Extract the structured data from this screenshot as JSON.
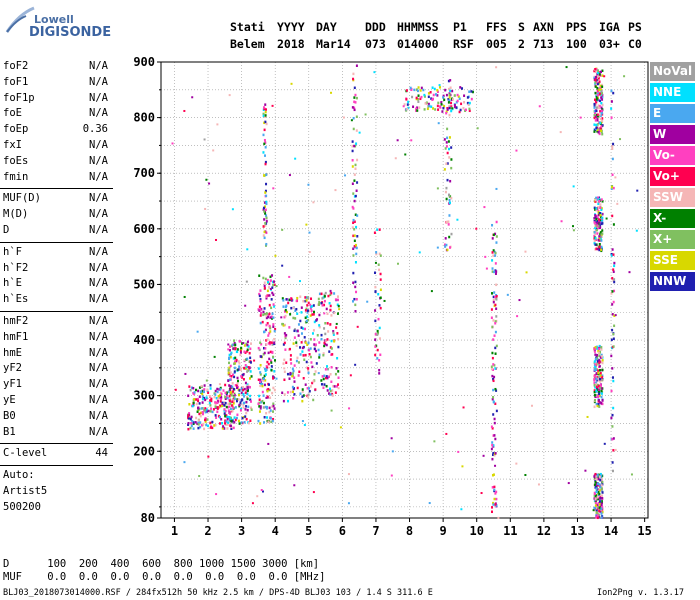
{
  "logo": {
    "brand_top": "Lowell",
    "brand_bottom": "DIGISONDE"
  },
  "header": {
    "labels": [
      "Stati",
      "YYYY",
      "DAY",
      "DDD",
      "HHMMSS",
      "P1",
      "FFS",
      "S",
      "AXN",
      "PPS",
      "IGA",
      "PS"
    ],
    "values": [
      "Belem",
      "2018",
      "Mar14",
      "073",
      "014000",
      "RSF",
      "005",
      "2",
      "713",
      "100",
      "03+",
      "C0"
    ]
  },
  "params": {
    "group1": [
      {
        "name": "foF2",
        "value": "N/A"
      },
      {
        "name": "foF1",
        "value": "N/A"
      },
      {
        "name": "foF1p",
        "value": "N/A"
      },
      {
        "name": "foE",
        "value": "N/A"
      },
      {
        "name": "foEp",
        "value": "0.36"
      },
      {
        "name": "fxI",
        "value": "N/A"
      },
      {
        "name": "foEs",
        "value": "N/A"
      },
      {
        "name": "fmin",
        "value": "N/A"
      }
    ],
    "group2": [
      {
        "name": "MUF(D)",
        "value": "N/A"
      },
      {
        "name": "M(D)",
        "value": "N/A"
      },
      {
        "name": "D",
        "value": "N/A"
      }
    ],
    "group3": [
      {
        "name": "h`F",
        "value": "N/A"
      },
      {
        "name": "h`F2",
        "value": "N/A"
      },
      {
        "name": "h`E",
        "value": "N/A"
      },
      {
        "name": "h`Es",
        "value": "N/A"
      }
    ],
    "group4": [
      {
        "name": "hmF2",
        "value": "N/A"
      },
      {
        "name": "hmF1",
        "value": "N/A"
      },
      {
        "name": "hmE",
        "value": "N/A"
      },
      {
        "name": "yF2",
        "value": "N/A"
      },
      {
        "name": "yF1",
        "value": "N/A"
      },
      {
        "name": "yE",
        "value": "N/A"
      },
      {
        "name": "B0",
        "value": "N/A"
      },
      {
        "name": "B1",
        "value": "N/A"
      }
    ],
    "clevel": {
      "name": "C-level",
      "value": "44"
    },
    "auto": [
      "Auto:",
      "Artist5",
      "500200"
    ]
  },
  "legend": [
    {
      "label": "NoVal",
      "color": "#a0a0a0"
    },
    {
      "label": "NNE",
      "color": "#00e0ff"
    },
    {
      "label": "E",
      "color": "#4aa8f0"
    },
    {
      "label": "W",
      "color": "#a000a0"
    },
    {
      "label": "Vo-",
      "color": "#ff40c0"
    },
    {
      "label": "Vo+",
      "color": "#ff0050"
    },
    {
      "label": "SSW",
      "color": "#f5b6b6"
    },
    {
      "label": "X-",
      "color": "#008000"
    },
    {
      "label": "X+",
      "color": "#80c060"
    },
    {
      "label": "SSE",
      "color": "#d8d800"
    },
    {
      "label": "NNW",
      "color": "#2020b0"
    }
  ],
  "footer": {
    "d_row": "D      100  200  400  600  800 1000 1500 3000 [km]",
    "muf_row": "MUF    0.0  0.0  0.0  0.0  0.0  0.0  0.0  0.0 [MHz]",
    "file_info": "BLJ03_2018073014000.RSF / 284fx512h 50 kHz 2.5 km / DPS-4D BLJ03 103 / 1.4 S 311.6 E",
    "version": "Ion2Png v. 1.3.17"
  },
  "chart_data": {
    "type": "scatter",
    "title": "",
    "xlabel": "",
    "ylabel": "",
    "xlim": [
      0.6,
      15.1
    ],
    "ylim": [
      80,
      900
    ],
    "xticks": [
      1,
      2,
      3,
      4,
      5,
      6,
      7,
      8,
      9,
      10,
      11,
      12,
      13,
      14,
      15
    ],
    "yticks": [
      80,
      200,
      300,
      400,
      500,
      600,
      700,
      800,
      900
    ],
    "grid": "dotted",
    "legend_position": "right",
    "clusters": [
      {
        "name": "F-trace",
        "x": [
          1.4,
          2.8
        ],
        "y": [
          240,
          320
        ],
        "count": 260
      },
      {
        "name": "F-trace",
        "x": [
          2.6,
          3.3
        ],
        "y": [
          250,
          400
        ],
        "count": 220
      },
      {
        "name": "F-trace",
        "x": [
          3.5,
          4.0
        ],
        "y": [
          250,
          520
        ],
        "count": 200
      },
      {
        "name": "F-trace",
        "x": [
          4.2,
          5.2
        ],
        "y": [
          290,
          480
        ],
        "count": 190
      },
      {
        "name": "F-trace",
        "x": [
          5.2,
          5.9
        ],
        "y": [
          300,
          490
        ],
        "count": 120
      },
      {
        "name": "column",
        "x": [
          3.65,
          3.75
        ],
        "y": [
          560,
          830
        ],
        "count": 60
      },
      {
        "name": "column",
        "x": [
          6.3,
          6.45
        ],
        "y": [
          450,
          895
        ],
        "count": 70
      },
      {
        "name": "column",
        "x": [
          6.95,
          7.15
        ],
        "y": [
          340,
          600
        ],
        "count": 40
      },
      {
        "name": "band",
        "x": [
          7.8,
          9.9
        ],
        "y": [
          810,
          855
        ],
        "count": 130
      },
      {
        "name": "column",
        "x": [
          9.05,
          9.25
        ],
        "y": [
          560,
          870
        ],
        "count": 55
      },
      {
        "name": "column",
        "x": [
          10.45,
          10.6
        ],
        "y": [
          90,
          620
        ],
        "count": 110
      },
      {
        "name": "column",
        "x": [
          13.5,
          13.75
        ],
        "y": [
          770,
          890
        ],
        "count": 160
      },
      {
        "name": "column",
        "x": [
          13.5,
          13.75
        ],
        "y": [
          560,
          660
        ],
        "count": 130
      },
      {
        "name": "column",
        "x": [
          13.5,
          13.75
        ],
        "y": [
          280,
          390
        ],
        "count": 160
      },
      {
        "name": "column",
        "x": [
          13.5,
          13.75
        ],
        "y": [
          80,
          160
        ],
        "count": 150
      },
      {
        "name": "column",
        "x": [
          14.0,
          14.1
        ],
        "y": [
          160,
          880
        ],
        "count": 60
      }
    ]
  }
}
